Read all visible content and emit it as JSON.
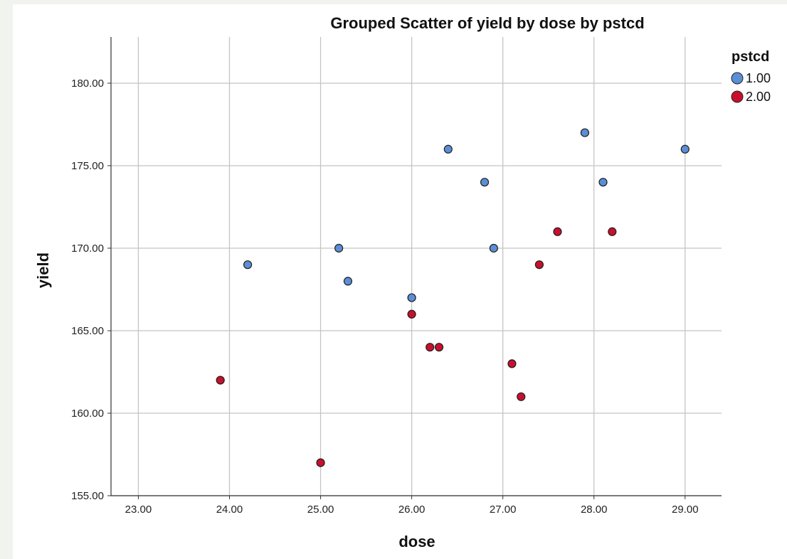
{
  "chart_data": {
    "type": "scatter",
    "title": "Grouped Scatter of yield by dose by pstcd",
    "xlabel": "dose",
    "ylabel": "yield",
    "xlim": [
      22.7,
      29.4
    ],
    "ylim": [
      155.0,
      182.8
    ],
    "xticks": [
      23,
      24,
      25,
      26,
      27,
      28,
      29
    ],
    "yticks": [
      155,
      160,
      165,
      170,
      175,
      180
    ],
    "x_tick_labels": [
      "23.00",
      "24.00",
      "25.00",
      "26.00",
      "27.00",
      "28.00",
      "29.00"
    ],
    "y_tick_labels": [
      "155.00",
      "160.00",
      "165.00",
      "170.00",
      "175.00",
      "180.00"
    ],
    "grid": true,
    "legend": {
      "title": "pstcd",
      "position": "top-right"
    },
    "series": [
      {
        "name": "1.00",
        "color": "#5b8ed6",
        "x": [
          24.2,
          25.2,
          25.3,
          26.0,
          26.4,
          26.8,
          26.9,
          27.9,
          28.1,
          29.0
        ],
        "y": [
          169,
          170,
          168,
          167,
          176,
          174,
          170,
          177,
          174,
          176
        ]
      },
      {
        "name": "2.00",
        "color": "#c8102e",
        "x": [
          23.9,
          25.0,
          26.0,
          26.2,
          26.3,
          27.1,
          27.2,
          27.4,
          27.6,
          28.2
        ],
        "y": [
          162,
          157,
          166,
          164,
          164,
          163,
          161,
          169,
          171,
          171
        ]
      }
    ]
  }
}
